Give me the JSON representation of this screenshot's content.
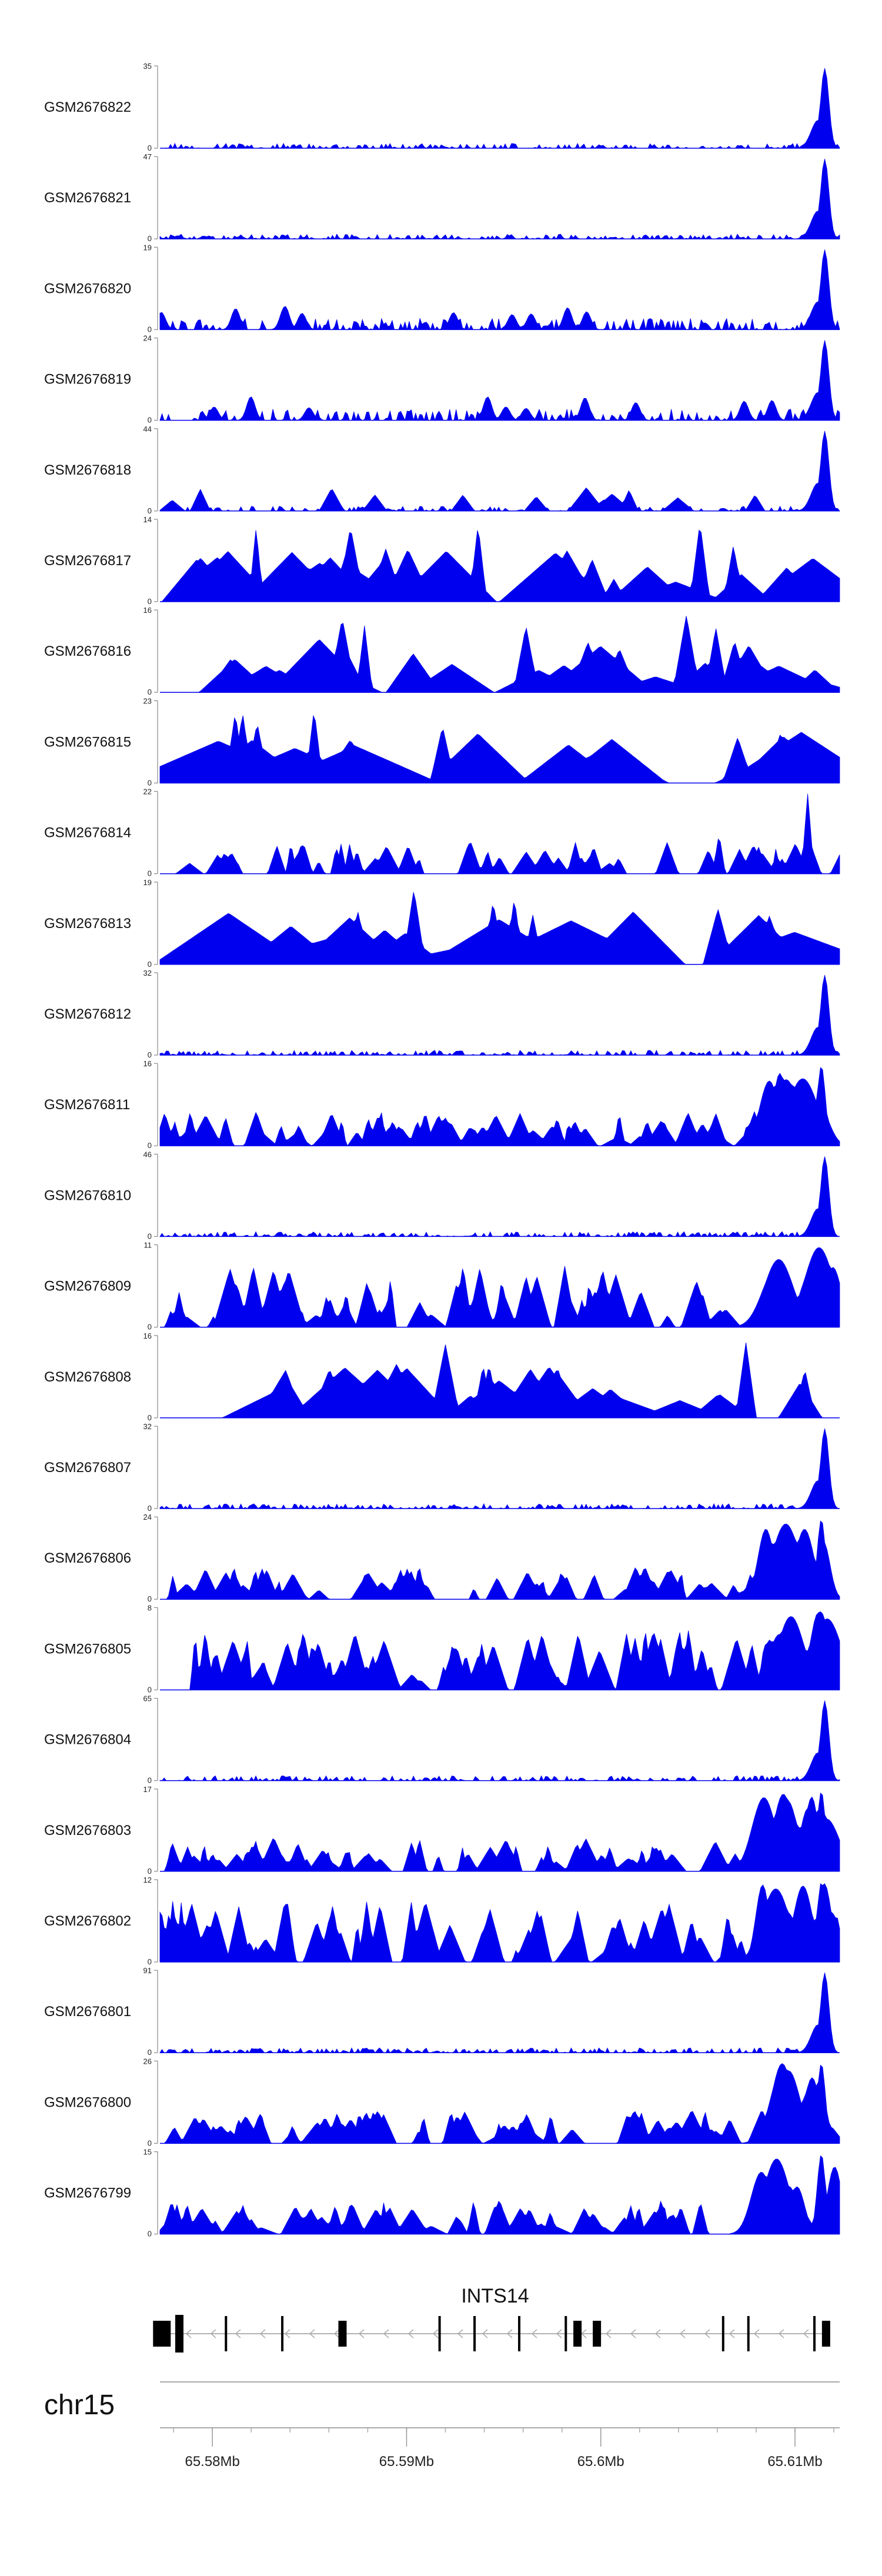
{
  "chart_data": {
    "type": "area",
    "title": "",
    "fill_color": "#0000ee",
    "y_min_label": "0",
    "x_range_mb": [
      65.5773,
      65.6123
    ],
    "tracks": [
      {
        "name": "GSM2676822",
        "ymax": 35,
        "ymax_label": "35",
        "profile": "peak_end",
        "seed": 11
      },
      {
        "name": "GSM2676821",
        "ymax": 47,
        "ymax_label": "47",
        "profile": "peak_end",
        "seed": 12
      },
      {
        "name": "GSM2676820",
        "ymax": 19,
        "ymax_label": "19",
        "profile": "peak_end_dense",
        "seed": 13
      },
      {
        "name": "GSM2676819",
        "ymax": 24,
        "ymax_label": "24",
        "profile": "peak_end_dense",
        "seed": 14
      },
      {
        "name": "GSM2676818",
        "ymax": 44,
        "ymax_label": "44",
        "profile": "peak_end_sparse",
        "seed": 15
      },
      {
        "name": "GSM2676817",
        "ymax": 14,
        "ymax_label": "14",
        "profile": "sparse",
        "seed": 16
      },
      {
        "name": "GSM2676816",
        "ymax": 16,
        "ymax_label": "16",
        "profile": "sparse",
        "seed": 17
      },
      {
        "name": "GSM2676815",
        "ymax": 23,
        "ymax_label": "23",
        "profile": "very_sparse",
        "seed": 18
      },
      {
        "name": "GSM2676814",
        "ymax": 22,
        "ymax_label": "22",
        "profile": "spiky",
        "seed": 19
      },
      {
        "name": "GSM2676813",
        "ymax": 19,
        "ymax_label": "19",
        "profile": "very_sparse",
        "seed": 20
      },
      {
        "name": "GSM2676812",
        "ymax": 32,
        "ymax_label": "32",
        "profile": "peak_end",
        "seed": 21
      },
      {
        "name": "GSM2676811",
        "ymax": 16,
        "ymax_label": "16",
        "profile": "dense_end",
        "seed": 22
      },
      {
        "name": "GSM2676810",
        "ymax": 46,
        "ymax_label": "46",
        "profile": "peak_end",
        "seed": 23
      },
      {
        "name": "GSM2676809",
        "ymax": 11,
        "ymax_label": "11",
        "profile": "dense",
        "seed": 24
      },
      {
        "name": "GSM2676808",
        "ymax": 16,
        "ymax_label": "16",
        "profile": "sparse",
        "seed": 25
      },
      {
        "name": "GSM2676807",
        "ymax": 32,
        "ymax_label": "32",
        "profile": "peak_end",
        "seed": 26
      },
      {
        "name": "GSM2676806",
        "ymax": 24,
        "ymax_label": "24",
        "profile": "dense_end",
        "seed": 27
      },
      {
        "name": "GSM2676805",
        "ymax": 8,
        "ymax_label": "8",
        "profile": "dense",
        "seed": 28
      },
      {
        "name": "GSM2676804",
        "ymax": 65,
        "ymax_label": "65",
        "profile": "peak_end",
        "seed": 29
      },
      {
        "name": "GSM2676803",
        "ymax": 17,
        "ymax_label": "17",
        "profile": "dense_end",
        "seed": 30
      },
      {
        "name": "GSM2676802",
        "ymax": 12,
        "ymax_label": "12",
        "profile": "dense",
        "seed": 31
      },
      {
        "name": "GSM2676801",
        "ymax": 91,
        "ymax_label": "91",
        "profile": "peak_end",
        "seed": 32
      },
      {
        "name": "GSM2676800",
        "ymax": 26,
        "ymax_label": "26",
        "profile": "dense_end",
        "seed": 33
      },
      {
        "name": "GSM2676799",
        "ymax": 15,
        "ymax_label": "15",
        "profile": "dense_end",
        "seed": 34
      }
    ],
    "gene": {
      "name": "INTS14",
      "strand": "-",
      "start_mb": 65.5773,
      "end_mb": 65.6117,
      "exons_mb": [
        65.5774,
        65.5783,
        65.5807,
        65.5836,
        65.5867,
        65.5917,
        65.5935,
        65.5958,
        65.5982,
        65.5988,
        65.5998,
        65.6063,
        65.6076,
        65.611,
        65.6116
      ]
    },
    "chromosome": "chr15",
    "x_ticks": [
      {
        "value": 65.58,
        "label": "65.58Mb"
      },
      {
        "value": 65.59,
        "label": "65.59Mb"
      },
      {
        "value": 65.6,
        "label": "65.6Mb"
      },
      {
        "value": 65.61,
        "label": "65.61Mb"
      }
    ],
    "minor_tick_step_mb": 0.002
  }
}
